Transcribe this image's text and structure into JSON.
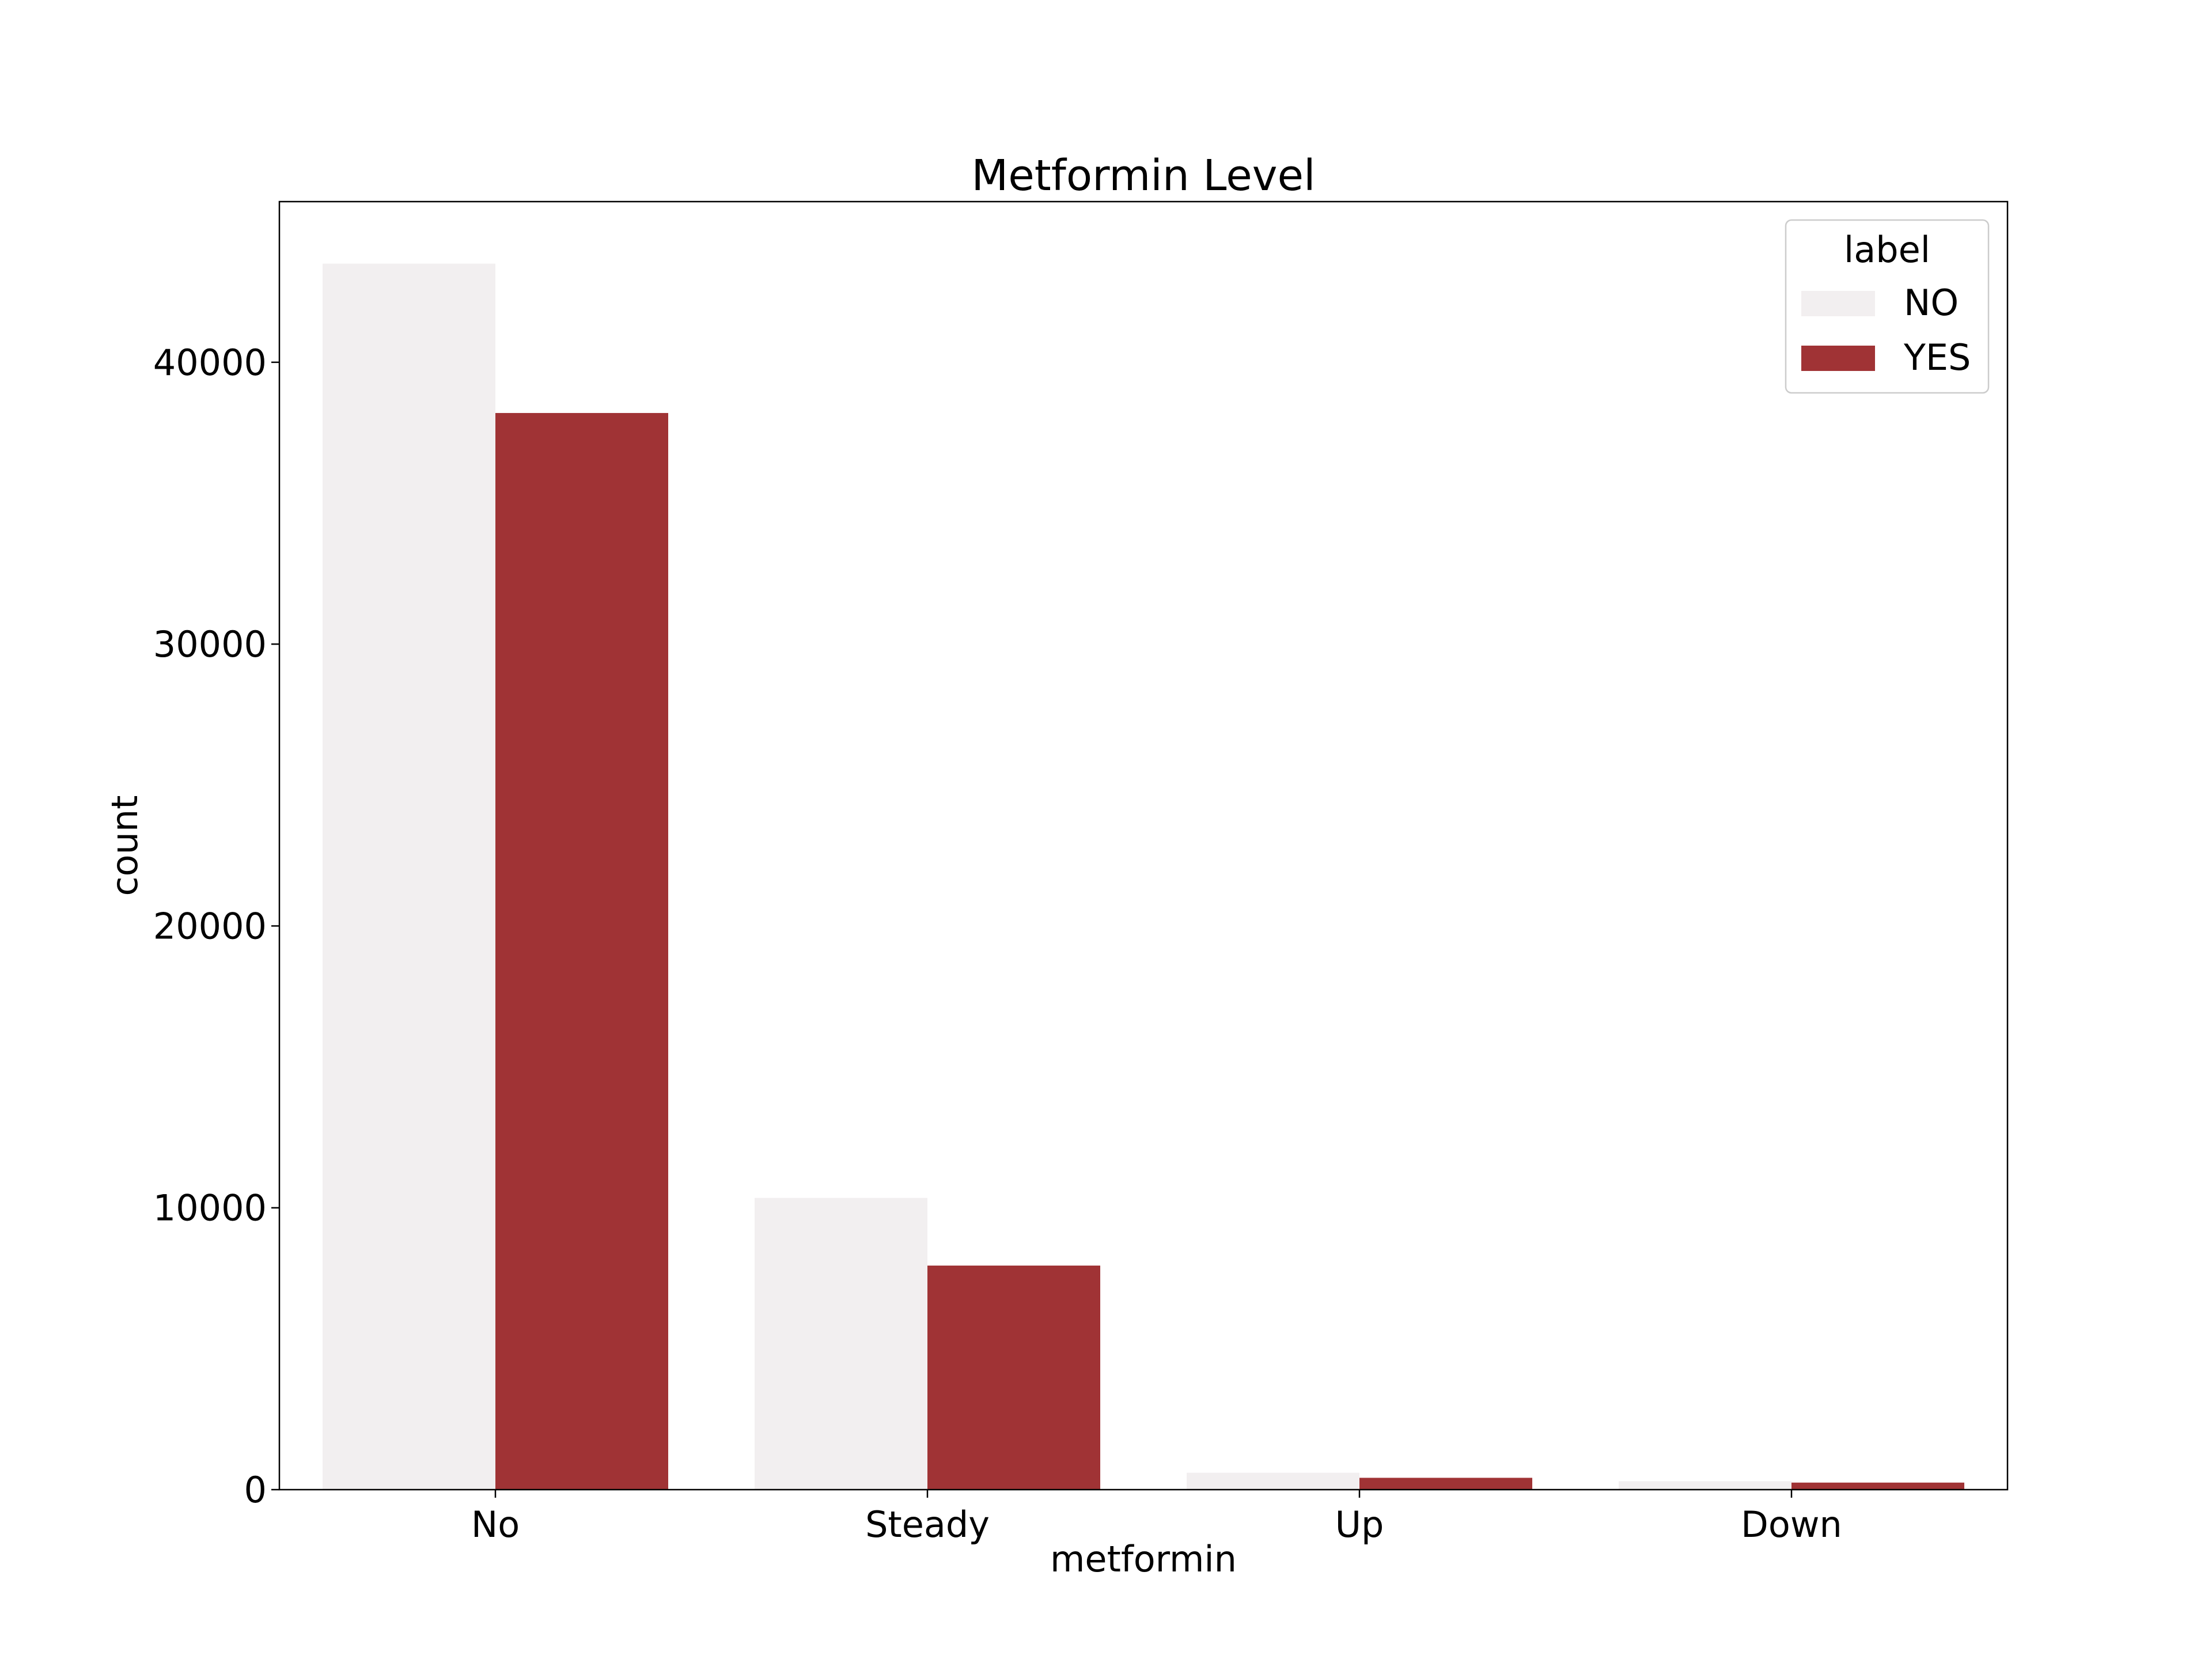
{
  "chart_data": {
    "type": "bar",
    "title": "Metformin Level",
    "xlabel": "metformin",
    "ylabel": "count",
    "categories": [
      "No",
      "Steady",
      "Up",
      "Down"
    ],
    "series": [
      {
        "name": "NO",
        "values": [
          43500,
          10350,
          600,
          300
        ],
        "color": "#f2eff0"
      },
      {
        "name": "YES",
        "values": [
          38200,
          7950,
          420,
          250
        ],
        "color": "#a03335"
      }
    ],
    "ylim": [
      0,
      45700
    ],
    "yticks": [
      0,
      10000,
      20000,
      30000,
      40000
    ],
    "ytick_labels": [
      "0",
      "10000",
      "20000",
      "30000",
      "40000"
    ],
    "grid": false,
    "legend": {
      "title": "label",
      "placement": "top-right",
      "entries": [
        "NO",
        "YES"
      ]
    }
  }
}
